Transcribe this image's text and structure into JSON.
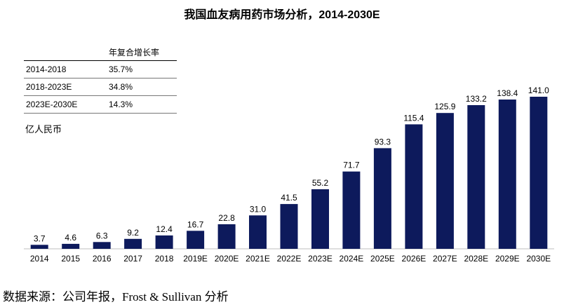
{
  "title": "我国血友病用药市场分析，2014-2030E",
  "cagr_table": {
    "header": "年复合增长率",
    "rows": [
      {
        "period": "2014-2018",
        "rate": "35.7%"
      },
      {
        "period": "2018-2023E",
        "rate": "34.8%"
      },
      {
        "period": "2023E-2030E",
        "rate": "14.3%"
      }
    ]
  },
  "unit_label": "亿人民币",
  "source": "数据来源：公司年报，Frost & Sullivan 分析",
  "colors": {
    "bar": "#0d1a5c",
    "axis": "#bfbfbf"
  },
  "chart_data": {
    "type": "bar",
    "title": "我国血友病用药市场分析，2014-2030E",
    "ylabel": "亿人民币",
    "xlabel": "",
    "categories": [
      "2014",
      "2015",
      "2016",
      "2017",
      "2018",
      "2019E",
      "2020E",
      "2021E",
      "2022E",
      "2023E",
      "2024E",
      "2025E",
      "2026E",
      "2027E",
      "2028E",
      "2029E",
      "2030E"
    ],
    "values": [
      3.7,
      4.6,
      6.3,
      9.2,
      12.4,
      16.7,
      22.8,
      31.0,
      41.5,
      55.2,
      71.7,
      93.3,
      115.4,
      125.9,
      133.2,
      138.4,
      141.0
    ],
    "value_labels": [
      "3.7",
      "4.6",
      "6.3",
      "9.2",
      "12.4",
      "16.7",
      "22.8",
      "31.0",
      "41.5",
      "55.2",
      "71.7",
      "93.3",
      "115.4",
      "125.9",
      "133.2",
      "138.4",
      "141.0"
    ],
    "ylim": [
      0,
      141
    ],
    "grid": false,
    "legend": "none"
  }
}
